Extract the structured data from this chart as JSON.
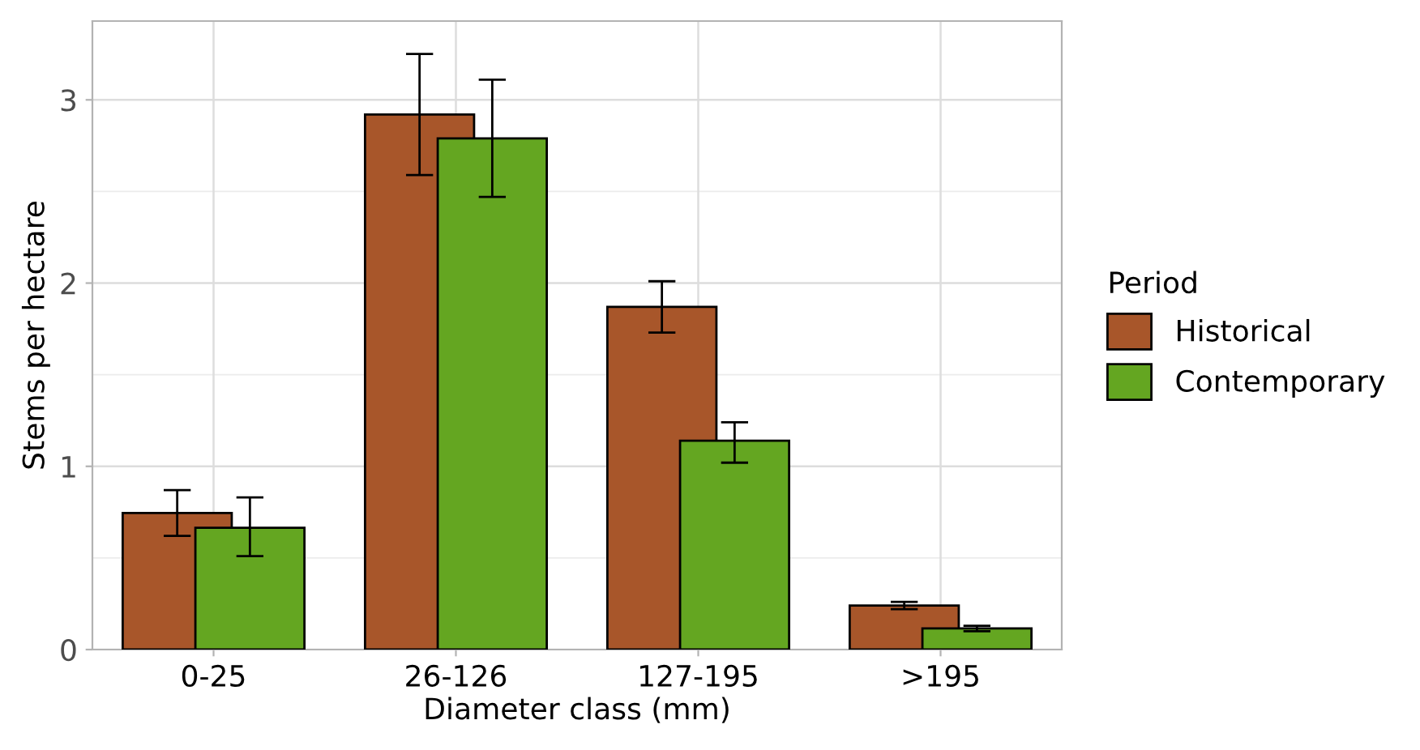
{
  "chart_data": {
    "type": "bar",
    "xlabel": "Diameter class (mm)",
    "ylabel": "Stems per hectare",
    "legend_title": "Period",
    "categories": [
      "0-25",
      "26-126",
      "127-195",
      ">195"
    ],
    "series": [
      {
        "name": "Historical",
        "color": "#a8562a",
        "values": [
          0.745,
          2.92,
          1.87,
          0.24
        ],
        "errors": [
          [
            0.62,
            0.87
          ],
          [
            2.59,
            3.25
          ],
          [
            1.73,
            2.01
          ],
          [
            0.22,
            0.26
          ]
        ]
      },
      {
        "name": "Contemporary",
        "color": "#64a621",
        "values": [
          0.665,
          2.79,
          1.14,
          0.115
        ],
        "errors": [
          [
            0.51,
            0.83
          ],
          [
            2.47,
            3.11
          ],
          [
            1.02,
            1.24
          ],
          [
            0.1,
            0.13
          ]
        ]
      }
    ],
    "ylim": [
      0,
      3.43
    ],
    "yticks": [
      0,
      1,
      2,
      3
    ],
    "grid": true,
    "legend": "right"
  }
}
